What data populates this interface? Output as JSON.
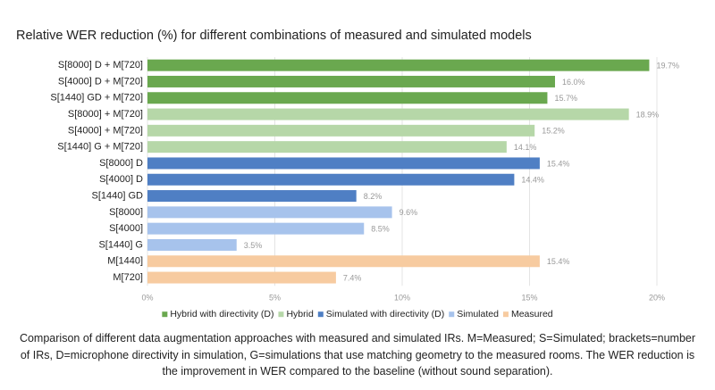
{
  "chart_data": {
    "type": "bar",
    "orientation": "horizontal",
    "title": "Relative WER reduction (%) for different combinations of measured and simulated models",
    "categories": [
      "S[8000] D + M[720]",
      "S[4000] D + M[720]",
      "S[1440] GD + M[720]",
      "S[8000] + M[720]",
      "S[4000] + M[720]",
      "S[1440] G + M[720]",
      "S[8000] D",
      "S[4000] D",
      "S[1440] GD",
      "S[8000]",
      "S[4000]",
      "S[1440] G",
      "M[1440]",
      "M[720]"
    ],
    "series": [
      {
        "name": "Hybrid with directivity (D)",
        "color": "#6aa84f",
        "values": [
          19.7,
          16.0,
          15.7,
          null,
          null,
          null,
          null,
          null,
          null,
          null,
          null,
          null,
          null,
          null
        ],
        "value_labels": [
          "19.7%",
          "16.0%",
          "15.7%",
          null,
          null,
          null,
          null,
          null,
          null,
          null,
          null,
          null,
          null,
          null
        ]
      },
      {
        "name": "Hybrid",
        "color": "#b6d7a8",
        "values": [
          null,
          null,
          null,
          18.9,
          15.2,
          14.1,
          null,
          null,
          null,
          null,
          null,
          null,
          null,
          null
        ],
        "value_labels": [
          null,
          null,
          null,
          "18.9%",
          "15.2%",
          "14.1%",
          null,
          null,
          null,
          null,
          null,
          null,
          null,
          null
        ]
      },
      {
        "name": "Simulated with directivity (D)",
        "color": "#4f7fc4",
        "values": [
          null,
          null,
          null,
          null,
          null,
          null,
          15.4,
          14.4,
          8.2,
          null,
          null,
          null,
          null,
          null
        ],
        "value_labels": [
          null,
          null,
          null,
          null,
          null,
          null,
          "15.4%",
          "14.4%",
          "8.2%",
          null,
          null,
          null,
          null,
          null
        ]
      },
      {
        "name": "Simulated",
        "color": "#a7c3ec",
        "values": [
          null,
          null,
          null,
          null,
          null,
          null,
          null,
          null,
          null,
          9.6,
          8.5,
          3.5,
          null,
          null
        ],
        "value_labels": [
          null,
          null,
          null,
          null,
          null,
          null,
          null,
          null,
          null,
          "9.6%",
          "8.5%",
          "3.5%",
          null,
          null
        ]
      },
      {
        "name": "Measured",
        "color": "#f7cba0",
        "values": [
          null,
          null,
          null,
          null,
          null,
          null,
          null,
          null,
          null,
          null,
          null,
          null,
          15.4,
          7.4
        ],
        "value_labels": [
          null,
          null,
          null,
          null,
          null,
          null,
          null,
          null,
          null,
          null,
          null,
          null,
          "15.4%",
          "7.4%"
        ]
      }
    ],
    "xlim": [
      0,
      20
    ],
    "xticks": [
      {
        "value": 0,
        "label": "0%"
      },
      {
        "value": 5,
        "label": "5%"
      },
      {
        "value": 10,
        "label": "10%"
      },
      {
        "value": 15,
        "label": "15%"
      },
      {
        "value": 20,
        "label": "20%"
      }
    ],
    "grid": true,
    "legend": "bottom"
  },
  "caption": "Comparison of different data augmentation approaches with measured and simulated IRs. M=Measured; S=Simulated; brackets=number of IRs, D=microphone directivity in simulation, G=simulations that use matching geometry to the measured rooms. The WER reduction is the improvement in WER compared to the baseline (without sound separation)."
}
